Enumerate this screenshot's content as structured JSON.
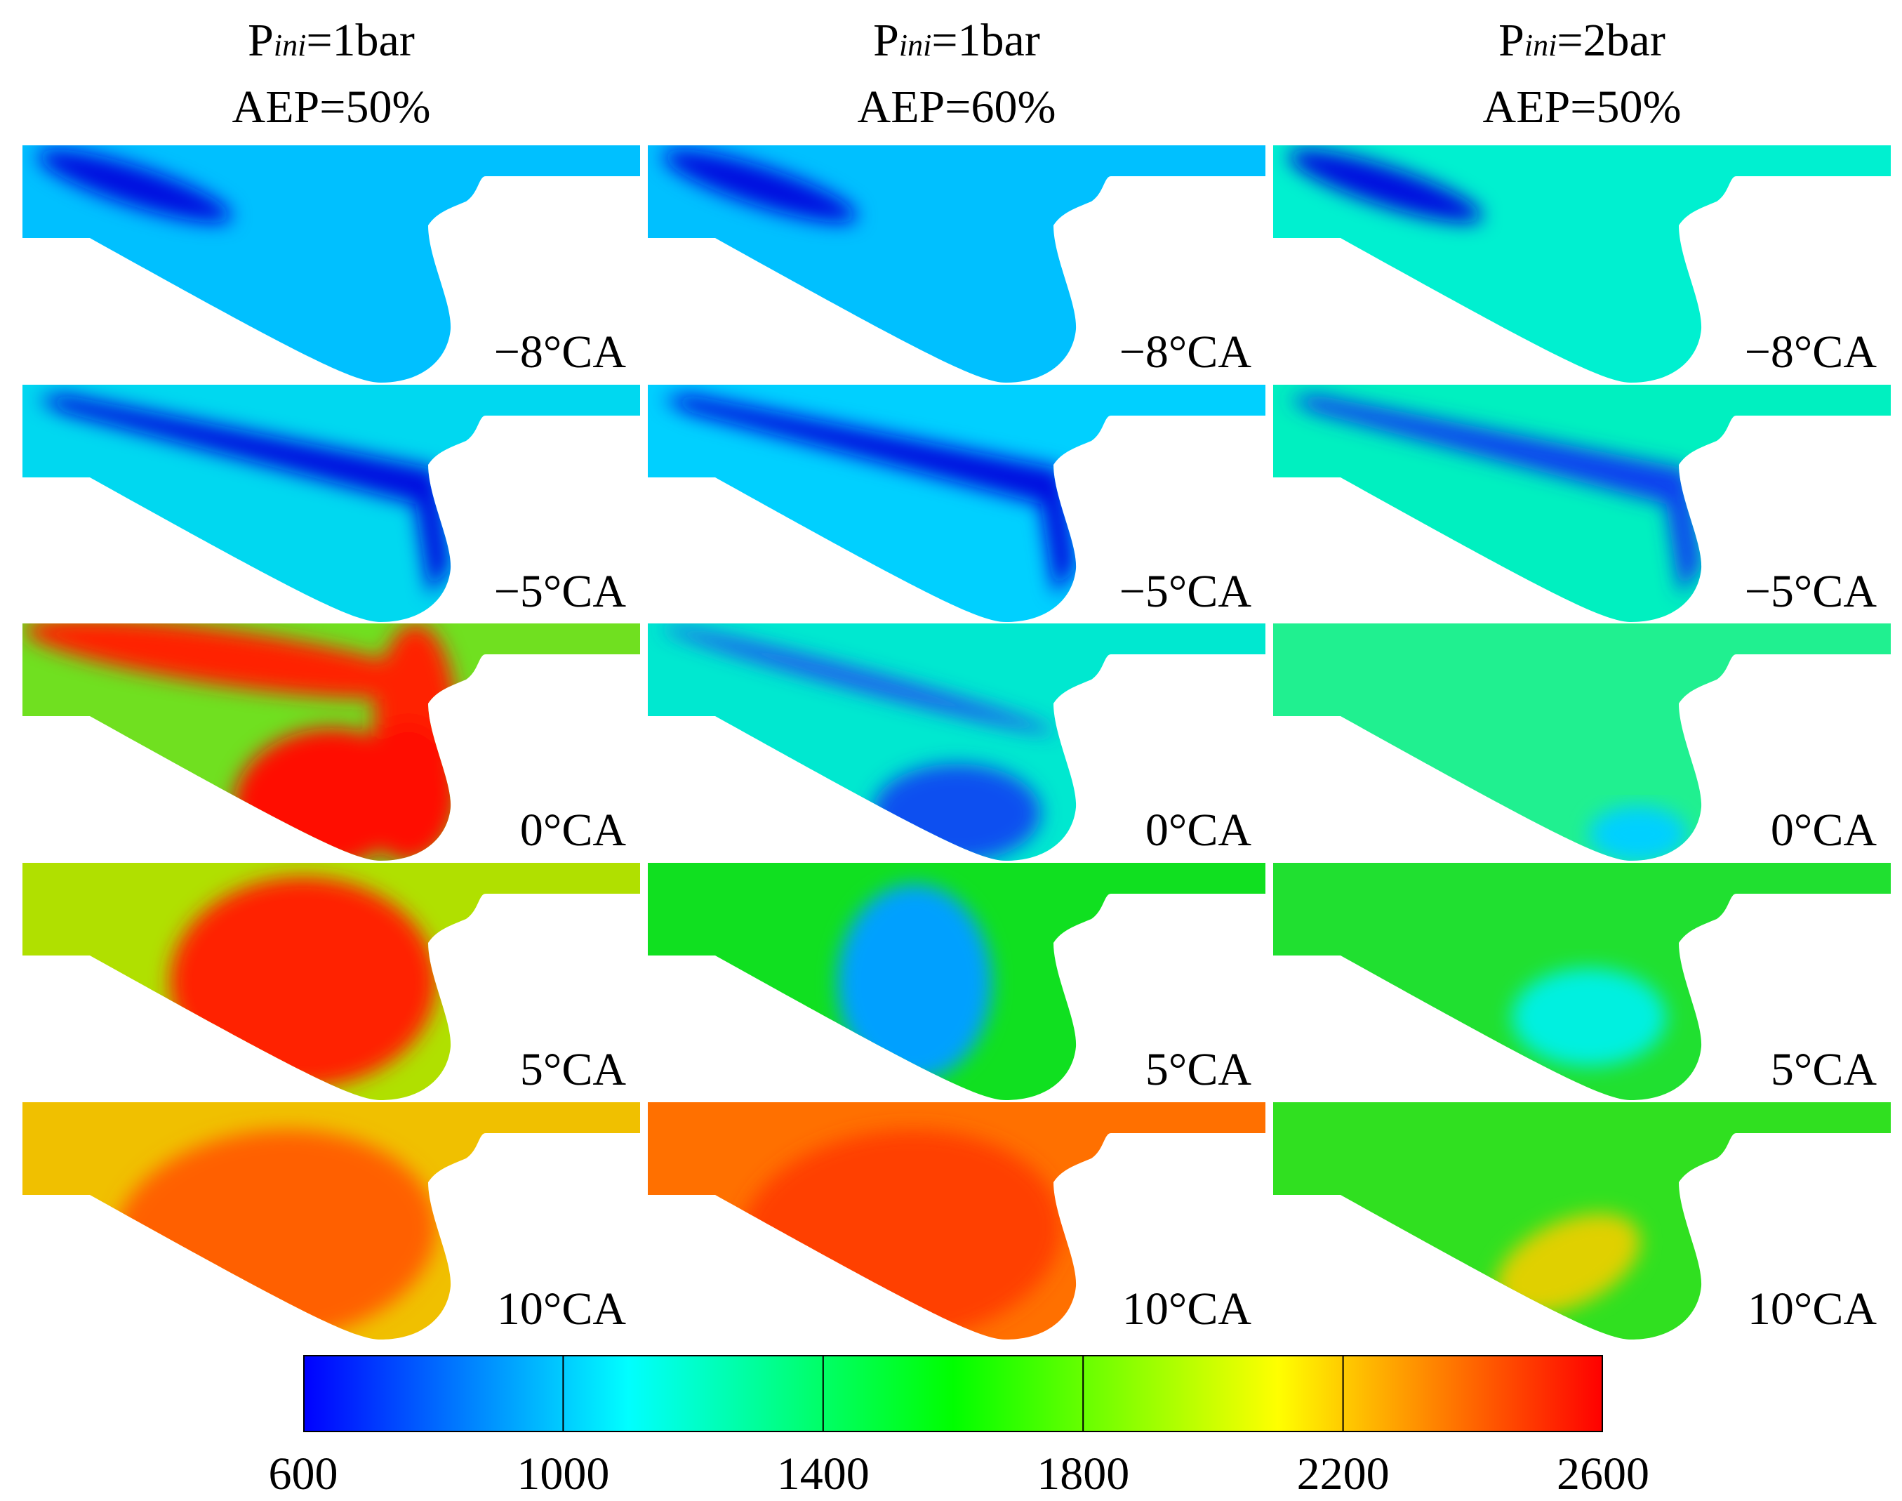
{
  "columns": [
    {
      "p_prefix": "P",
      "p_sub": "ini",
      "p_value": "=1bar",
      "aep": "AEP=50%"
    },
    {
      "p_prefix": "P",
      "p_sub": "ini",
      "p_value": "=1bar",
      "aep": "AEP=60%"
    },
    {
      "p_prefix": "P",
      "p_sub": "ini",
      "p_value": "=2bar",
      "aep": "AEP=50%"
    }
  ],
  "row_labels": [
    "−8°CA",
    "−5°CA",
    "0°CA",
    "5°CA",
    "10°CA"
  ],
  "colorbar": {
    "min": 600,
    "max": 2600,
    "ticks": [
      "600",
      "1000",
      "1400",
      "1800",
      "2200",
      "2600"
    ],
    "colors": [
      "#0000ff",
      "#00ffff",
      "#00ff00",
      "#ffff00",
      "#ff0000"
    ]
  },
  "panels": [
    [
      {
        "bg": "#00c0ff",
        "spots": [
          {
            "kind": "streak",
            "color": "#0010e0"
          }
        ]
      },
      {
        "bg": "#00d8f0",
        "spots": [
          {
            "kind": "longstreak",
            "color": "#0010e0"
          }
        ]
      },
      {
        "bg": "#70e020",
        "spots": [
          {
            "kind": "hot-upper",
            "color": "#ff2000"
          },
          {
            "kind": "hot-loop",
            "color": "#ff1000"
          }
        ]
      },
      {
        "bg": "#b0e000",
        "spots": [
          {
            "kind": "hot-core",
            "color": "#ff2000"
          }
        ]
      },
      {
        "bg": "#f0c000",
        "spots": [
          {
            "kind": "warm-core",
            "color": "#ff6000"
          }
        ]
      }
    ],
    [
      {
        "bg": "#00c0ff",
        "spots": [
          {
            "kind": "streak",
            "color": "#0010e0"
          }
        ]
      },
      {
        "bg": "#00d0ff",
        "spots": [
          {
            "kind": "longstreak",
            "color": "#0010e0"
          }
        ]
      },
      {
        "bg": "#00e8d0",
        "spots": [
          {
            "kind": "thinstreak",
            "color": "#2050f0"
          },
          {
            "kind": "blue-bowl",
            "color": "#1050f0"
          }
        ]
      },
      {
        "bg": "#10e020",
        "spots": [
          {
            "kind": "blue-swirl",
            "color": "#00a0ff"
          }
        ]
      },
      {
        "bg": "#ff7000",
        "spots": [
          {
            "kind": "warm-core",
            "color": "#ff4000"
          }
        ]
      }
    ],
    [
      {
        "bg": "#00f0d0",
        "spots": [
          {
            "kind": "streak",
            "color": "#0010e0"
          }
        ]
      },
      {
        "bg": "#00f0c0",
        "spots": [
          {
            "kind": "longstreak",
            "color": "#1040f0"
          }
        ]
      },
      {
        "bg": "#20f090",
        "spots": [
          {
            "kind": "cyan-bottom",
            "color": "#00d0ff"
          }
        ]
      },
      {
        "bg": "#20e030",
        "spots": [
          {
            "kind": "cyan-blob",
            "color": "#00f0e0"
          }
        ]
      },
      {
        "bg": "#30e020",
        "spots": [
          {
            "kind": "warm-blob",
            "color": "#e0d000"
          }
        ]
      }
    ]
  ]
}
